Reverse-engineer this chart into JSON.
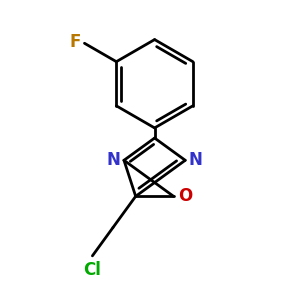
{
  "background_color": "#ffffff",
  "bond_color": "#000000",
  "bond_width": 2.0,
  "N_color": "#3333cc",
  "O_color": "#cc0000",
  "F_color": "#b87800",
  "Cl_color": "#00aa00",
  "font_size": 12,
  "figsize": [
    3.0,
    3.0
  ],
  "dpi": 100,
  "xlim": [
    -1.3,
    1.3
  ],
  "ylim": [
    -1.6,
    1.6
  ]
}
